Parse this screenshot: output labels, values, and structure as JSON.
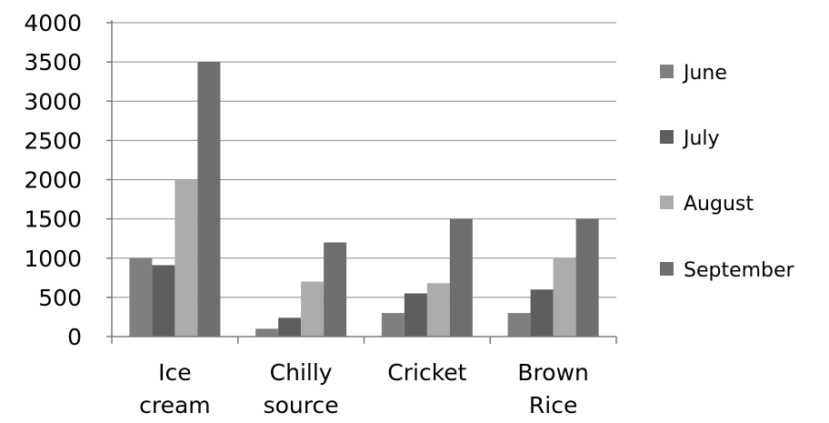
{
  "chart_data": {
    "type": "bar",
    "categories": [
      [
        "Ice",
        "cream"
      ],
      [
        "Chilly",
        "source"
      ],
      [
        "Cricket"
      ],
      [
        "Brown",
        "Rice"
      ]
    ],
    "series": [
      {
        "name": "June",
        "values": [
          1000,
          100,
          300,
          300
        ],
        "color": "#7f7f7f"
      },
      {
        "name": "July",
        "values": [
          910,
          240,
          550,
          600
        ],
        "color": "#5e5e5e"
      },
      {
        "name": "August",
        "values": [
          2000,
          700,
          680,
          1000
        ],
        "color": "#ababab"
      },
      {
        "name": "September",
        "values": [
          3500,
          1200,
          1500,
          1500
        ],
        "color": "#6e6e6e"
      }
    ],
    "ylim": [
      0,
      4000
    ],
    "yticks": [
      "0",
      "500",
      "1000",
      "1500",
      "2000",
      "2500",
      "3000",
      "3500",
      "4000"
    ],
    "ytick_values": [
      0,
      500,
      1000,
      1500,
      2000,
      2500,
      3000,
      3500,
      4000
    ],
    "grid": true,
    "legend_position": "right",
    "title": "",
    "xlabel": "",
    "ylabel": ""
  }
}
